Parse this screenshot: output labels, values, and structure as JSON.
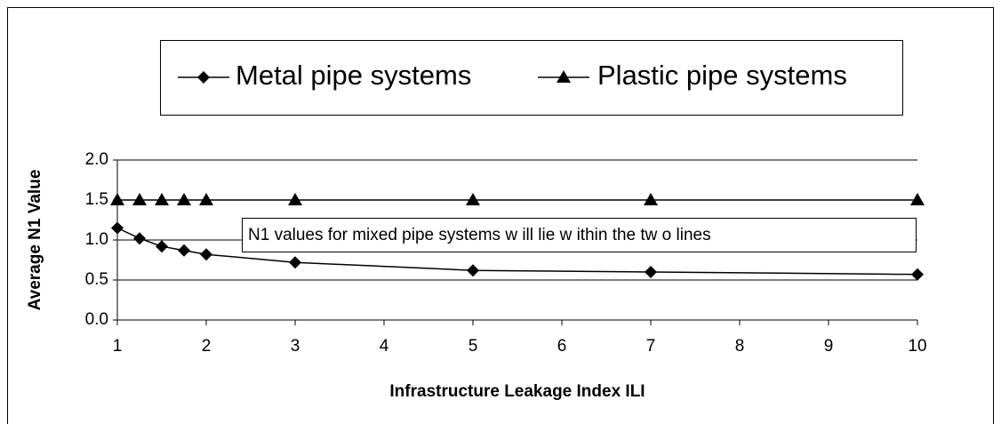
{
  "chart_data": {
    "type": "line",
    "x": [
      1,
      1.25,
      1.5,
      1.75,
      2,
      3,
      5,
      7,
      10
    ],
    "series": [
      {
        "name": "Metal pipe systems",
        "color": "#000000",
        "marker": "diamond",
        "values": [
          1.15,
          1.02,
          0.92,
          0.87,
          0.82,
          0.72,
          0.62,
          0.6,
          0.57
        ]
      },
      {
        "name": "Plastic pipe systems",
        "color": "#000000",
        "marker": "triangle",
        "values": [
          1.5,
          1.5,
          1.5,
          1.5,
          1.5,
          1.5,
          1.5,
          1.5,
          1.5
        ]
      }
    ],
    "xlim": [
      1,
      10
    ],
    "xticks": [
      1,
      2,
      3,
      4,
      5,
      6,
      7,
      8,
      9,
      10
    ],
    "ylim": [
      0,
      2
    ],
    "yticks": [
      {
        "value": 0,
        "label": "0.0"
      },
      {
        "value": 0.5,
        "label": "0.5"
      },
      {
        "value": 1,
        "label": "1.0"
      },
      {
        "value": 1.5,
        "label": "1.5"
      },
      {
        "value": 2,
        "label": "2.0"
      }
    ],
    "grid": true,
    "legend": "top",
    "xlabel": "Infrastructure Leakage Index ILI",
    "ylabel": "Average N1 Value",
    "annotation": "N1 values for mixed pipe systems w ill lie w ithin the tw o lines"
  }
}
